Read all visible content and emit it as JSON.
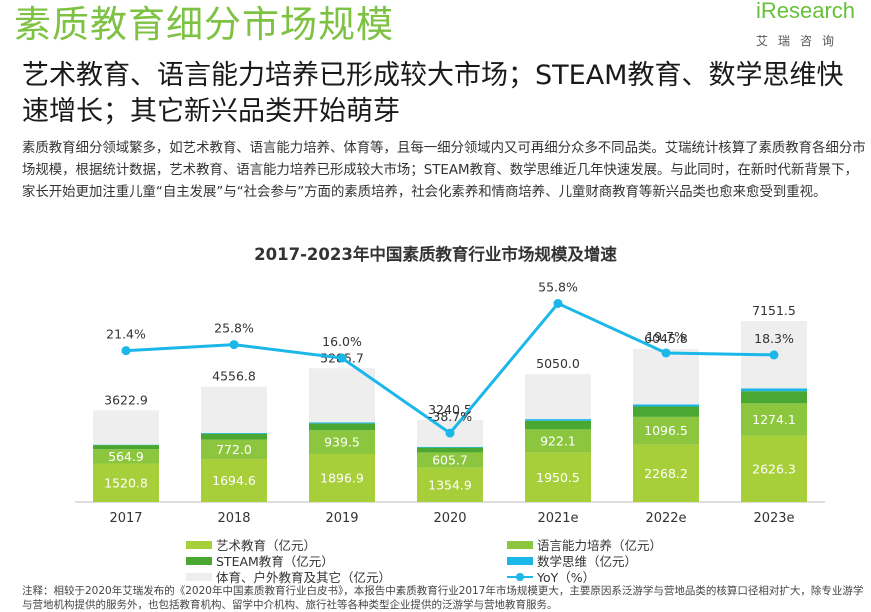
{
  "header": {
    "page_title": "素质教育细分市场规模",
    "logo_word": "iResearch",
    "logo_sub": "艾瑞咨询",
    "subtitle": "艺术教育、语言能力培养已形成较大市场；STEAM教育、数学思维快速增长；其它新兴品类开始萌芽",
    "paragraph": "素质教育细分领域繁多，如艺术教育、语言能力培养、体育等，且每一细分领域内又可再细分众多不同品类。艾瑞统计核算了素质教育各细分市场规模，根据统计数据，艺术教育、语言能力培养已形成较大市场；STEAM教育、数学思维近几年快速发展。与此同时，在新时代新背景下，家长开始更加注重儿童“自主发展”与“社会参与”方面的素质培养，社会化素养和情商培养、儿童财商教育等新兴品类也愈来愈受到重视。"
  },
  "chart_data": {
    "type": "bar",
    "stacked": true,
    "title": "2017-2023年中国素质教育行业市场规模及增速",
    "categories": [
      "2017",
      "2018",
      "2019",
      "2020",
      "2021e",
      "2022e",
      "2023e"
    ],
    "totals": [
      3622.9,
      4556.8,
      5285.7,
      3240.5,
      5050.0,
      6045.8,
      7151.5
    ],
    "totals_labels": [
      "3622.9",
      "4556.8",
      "5285.7",
      "3240.5",
      "5050.0",
      "6045.8",
      "7151.5"
    ],
    "series": [
      {
        "name": "艺术教育（亿元）",
        "color": "#a7cf3a",
        "values": [
          1520.8,
          1694.6,
          1896.9,
          1354.9,
          1950.5,
          2268.2,
          2626.3
        ],
        "labels": [
          "1520.8",
          "1694.6",
          "1896.9",
          "1354.9",
          "1950.5",
          "2268.2",
          "2626.3"
        ]
      },
      {
        "name": "语言能力培养（亿元）",
        "color": "#8cc63f",
        "values": [
          564.9,
          772.0,
          939.5,
          605.7,
          922.1,
          1096.5,
          1274.1
        ],
        "labels": [
          "564.9",
          "772.0",
          "939.5",
          "605.7",
          "922.1",
          "1096.5",
          "1274.1"
        ]
      },
      {
        "name": "STEAM教育（亿元）",
        "color": "#4aa832",
        "values": [
          165,
          235,
          270,
          190,
          340,
          410,
          480
        ]
      },
      {
        "name": "数学思维（亿元）",
        "color": "#1bb7e8",
        "values": [
          15,
          30,
          45,
          30,
          65,
          85,
          110
        ]
      },
      {
        "name": "体育、户外教育及其它（亿元）",
        "color": "#eeeeee",
        "values": [
          1357.2,
          1825.2,
          2134.3,
          1059.9,
          1772.4,
          2186.1,
          2661.1
        ]
      }
    ],
    "yoy": {
      "name": "YoY（%）",
      "color": "#1bb7e8",
      "values": [
        21.4,
        25.8,
        16.0,
        -38.7,
        55.8,
        19.7,
        18.3
      ],
      "labels": [
        "21.4%",
        "25.8%",
        "16.0%",
        "-38.7%",
        "55.8%",
        "19.7%",
        "18.3%"
      ]
    },
    "ylim": [
      0,
      8000
    ],
    "yoy_lim": [
      -60,
      70
    ],
    "legend": [
      "艺术教育（亿元）",
      "语言能力培养（亿元）",
      "STEAM教育（亿元）",
      "数学思维（亿元）",
      "体育、户外教育及其它（亿元）",
      "YoY（%）"
    ]
  },
  "footnote": "注释：相较于2020年艾瑞发布的《2020年中国素质教育行业白皮书》，本报告中素质教育行业2017年市场规模更大，主要原因系泛游学与营地品类的核算口径相对扩大，除专业游学与营地机构提供的服务外，也包括教育机构、留学中介机构、旅行社等各种类型企业提供的泛游学与营地教育服务。"
}
